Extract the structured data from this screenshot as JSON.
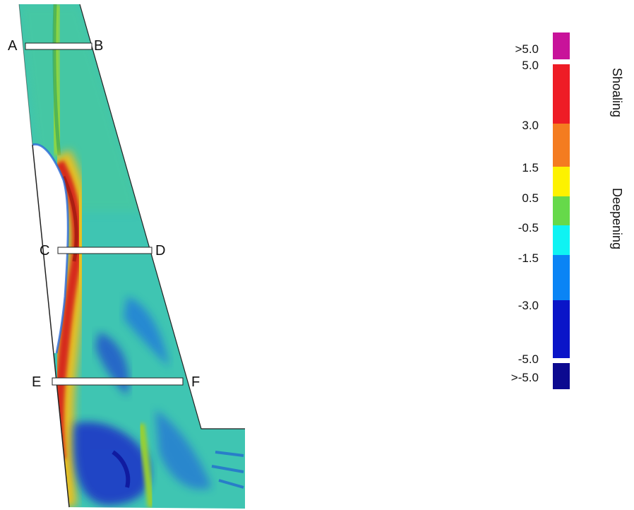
{
  "sections": [
    {
      "start": "A",
      "end": "B"
    },
    {
      "start": "C",
      "end": "D"
    },
    {
      "start": "E",
      "end": "F"
    }
  ],
  "legend": {
    "shoaling_label": "Shoaling",
    "deepening_label": "Deepening",
    "bins": [
      {
        "label": ">5.0",
        "color": "#c8139a"
      },
      {
        "label": "5.0",
        "color": "#ee1c25"
      },
      {
        "label": "3.0",
        "color": "#f47c20"
      },
      {
        "label": "1.5",
        "color": "#fdf200"
      },
      {
        "label": "0.5",
        "color": "#66d94a"
      },
      {
        "label": "-0.5",
        "color": "#0ff3f3"
      },
      {
        "label": "-1.5",
        "color": "#0a84f5"
      },
      {
        "label": "-3.0",
        "color": "#0a15c8"
      },
      {
        "label": "-5.0",
        "color": "#0a0a9a"
      },
      {
        "label": ">-5.0",
        "color": "#0c0a90"
      }
    ]
  },
  "colors": {
    "background_field": "#3fc7b7",
    "channel_core": "#d62a1a",
    "channel_edge": "#f2d61a",
    "deep_patches": "#1a3ad0"
  }
}
